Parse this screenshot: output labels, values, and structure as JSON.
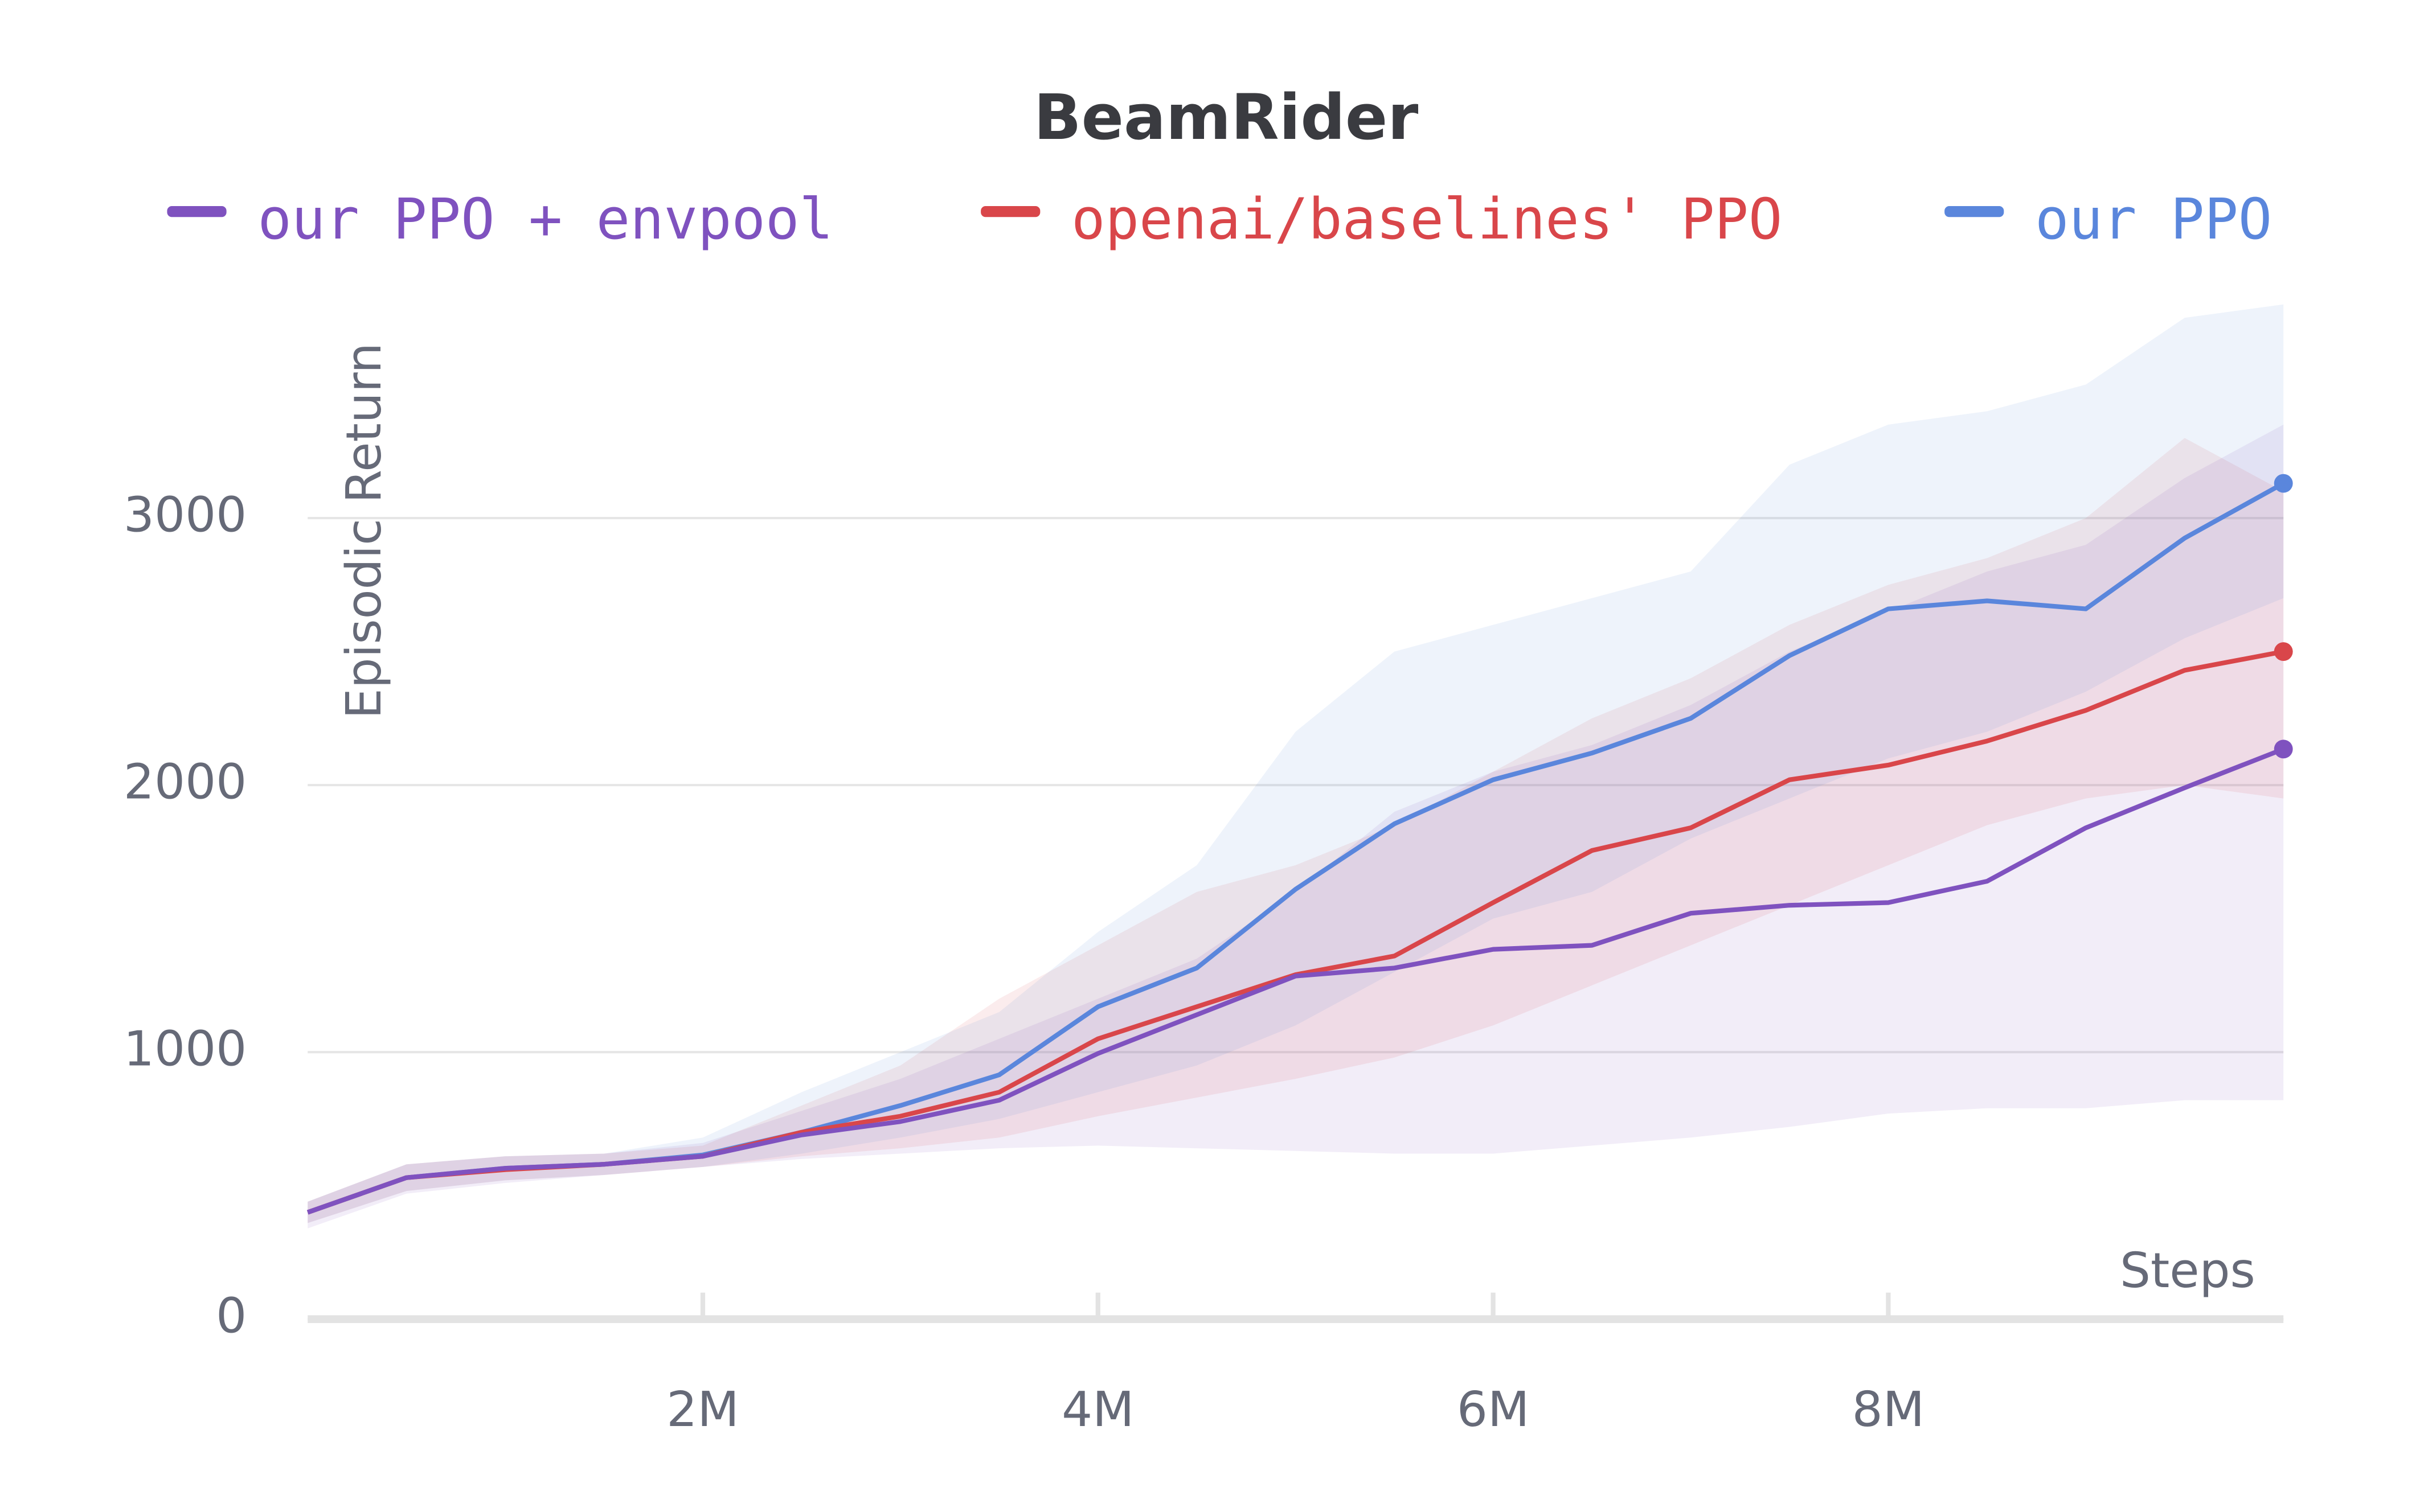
{
  "chart_data": {
    "type": "line",
    "title": "BeamRider",
    "x_label": "Steps",
    "y_label": "Episodic Return",
    "x": [
      0,
      500000,
      1000000,
      1500000,
      2000000,
      2500000,
      3000000,
      3500000,
      4000000,
      4500000,
      5000000,
      5500000,
      6000000,
      6500000,
      7000000,
      7500000,
      8000000,
      8500000,
      9000000,
      9500000,
      10000000
    ],
    "xlim": [
      0,
      10000000
    ],
    "xticks": [
      {
        "value": 2000000,
        "label": "2M"
      },
      {
        "value": 4000000,
        "label": "4M"
      },
      {
        "value": 6000000,
        "label": "6M"
      },
      {
        "value": 8000000,
        "label": "8M"
      }
    ],
    "ylim": [
      0,
      3800
    ],
    "yticks": [
      0,
      1000,
      2000,
      3000
    ],
    "grid": true,
    "legend": "top",
    "series": [
      {
        "name": "our PPO + envpool",
        "color": "#7f52bf",
        "values": [
          400,
          530,
          565,
          580,
          610,
          690,
          740,
          820,
          995,
          1140,
          1285,
          1315,
          1385,
          1400,
          1520,
          1550,
          1560,
          1640,
          1840,
          1990,
          2135
        ],
        "lower": [
          340,
          470,
          510,
          540,
          570,
          600,
          620,
          640,
          650,
          640,
          630,
          620,
          620,
          650,
          680,
          720,
          770,
          790,
          790,
          820,
          820
        ],
        "upper": [
          440,
          580,
          610,
          620,
          660,
          780,
          900,
          1050,
          1200,
          1350,
          1600,
          1900,
          2050,
          2150,
          2300,
          2500,
          2650,
          2800,
          2900,
          3150,
          3350
        ]
      },
      {
        "name": "openai/baselines' PPO",
        "color": "#d9464a",
        "values": [
          400,
          530,
          560,
          580,
          610,
          700,
          760,
          850,
          1050,
          1170,
          1290,
          1360,
          1560,
          1755,
          1840,
          2020,
          2075,
          2165,
          2280,
          2430,
          2500
        ],
        "lower": [
          360,
          480,
          520,
          540,
          570,
          610,
          640,
          680,
          760,
          830,
          900,
          980,
          1100,
          1250,
          1400,
          1550,
          1700,
          1850,
          1950,
          2000,
          1950
        ],
        "upper": [
          440,
          580,
          610,
          620,
          650,
          800,
          950,
          1200,
          1400,
          1600,
          1700,
          1850,
          2050,
          2250,
          2400,
          2600,
          2750,
          2850,
          3000,
          3300,
          3100
        ]
      },
      {
        "name": "our PPO",
        "color": "#5a86dc",
        "values": [
          400,
          530,
          565,
          580,
          615,
          700,
          800,
          915,
          1170,
          1315,
          1610,
          1855,
          2020,
          2120,
          2250,
          2485,
          2660,
          2690,
          2660,
          2925,
          3130
        ],
        "lower": [
          360,
          480,
          520,
          540,
          570,
          620,
          680,
          750,
          850,
          950,
          1100,
          1300,
          1500,
          1600,
          1800,
          1950,
          2100,
          2200,
          2350,
          2550,
          2700
        ],
        "upper": [
          440,
          580,
          610,
          620,
          680,
          850,
          1000,
          1150,
          1450,
          1700,
          2200,
          2500,
          2600,
          2700,
          2800,
          3200,
          3350,
          3400,
          3500,
          3750,
          3800
        ]
      }
    ]
  }
}
